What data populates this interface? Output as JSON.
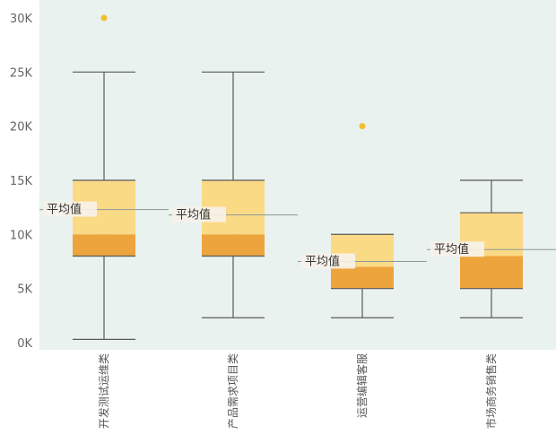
{
  "chart_data": {
    "type": "box",
    "ylim": [
      0,
      31000
    ],
    "y_ticks": [
      {
        "value": 0,
        "label": "0K"
      },
      {
        "value": 5000,
        "label": "5K"
      },
      {
        "value": 10000,
        "label": "10K"
      },
      {
        "value": 15000,
        "label": "15K"
      },
      {
        "value": 20000,
        "label": "20K"
      },
      {
        "value": 25000,
        "label": "25K"
      },
      {
        "value": 30000,
        "label": "30K"
      }
    ],
    "mean_label": "平均值",
    "colors": {
      "plot_bg": "#e9f2ef",
      "upper_box": "#fbda86",
      "lower_box": "#eea43c",
      "outlier": "#f0c12e",
      "line": "#5a5a5a",
      "mean_line": "#8a9a98"
    },
    "boxes": [
      {
        "category": "开发测试运维类",
        "min": 300,
        "q1": 8000,
        "median": 10000,
        "q3": 15000,
        "max": 25000,
        "mean": 12300,
        "outliers": [
          30000
        ]
      },
      {
        "category": "产品需求项目类",
        "min": 2300,
        "q1": 8000,
        "median": 10000,
        "q3": 15000,
        "max": 25000,
        "mean": 11800,
        "outliers": []
      },
      {
        "category": "运营编辑客服",
        "min": 2300,
        "q1": 5000,
        "median": 7000,
        "q3": 10000,
        "max": 10000,
        "mean": 7500,
        "outliers": [
          20000
        ]
      },
      {
        "category": "市场商务销售类",
        "min": 2300,
        "q1": 5000,
        "median": 8000,
        "q3": 12000,
        "max": 15000,
        "mean": 8600,
        "outliers": []
      }
    ]
  }
}
